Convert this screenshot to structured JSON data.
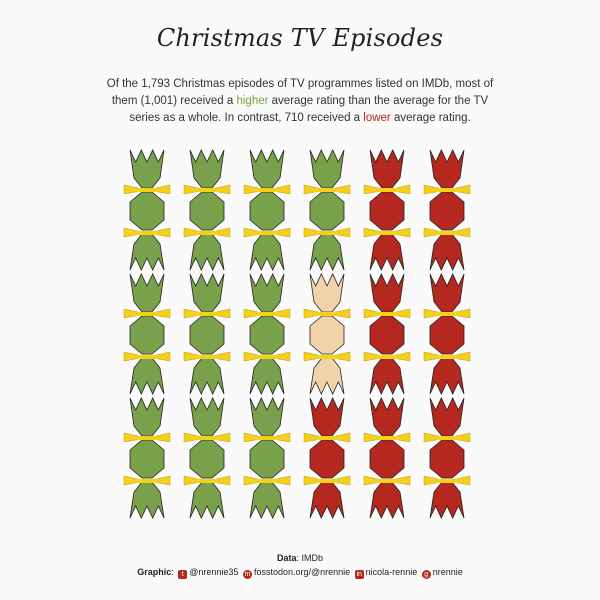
{
  "title": "Christmas TV Episodes",
  "subtitle": {
    "part1": "Of the 1,793 Christmas episodes of TV programmes listed on IMDb, most of them (1,001) received a ",
    "higher": "higher",
    "part2": " average rating than the average for the TV series as a whole. In contrast, 710 received a ",
    "lower": "lower",
    "part3": " average rating."
  },
  "caption": {
    "data_label": "Data",
    "data_value": ": IMDb",
    "graphic_label": "Graphic",
    "twitter": "@nrennie35",
    "mastodon": "fosstodon.org/@nrennie",
    "linkedin": "nicola-rennie",
    "github": "nrennie"
  },
  "icons": [
    "twitter-icon",
    "mastodon-icon",
    "linkedin-icon",
    "github-icon"
  ],
  "colors": {
    "higher": "#79A04A",
    "lower": "#B42820",
    "same": "#F2D2A9",
    "ribbon": "#F5D11C",
    "outline": "#222222"
  },
  "chart_data": {
    "type": "waffle",
    "categories": [
      "higher",
      "same",
      "lower"
    ],
    "values": [
      1001,
      82,
      710
    ],
    "units": [
      "higher",
      "higher",
      "higher",
      "higher",
      "higher",
      "higher",
      "higher",
      "higher",
      "higher",
      "higher",
      "same",
      "lower",
      "lower",
      "lower",
      "lower",
      "lower",
      "lower",
      "lower"
    ],
    "columns": 6,
    "rows": 3,
    "fill_order": "column-major"
  }
}
